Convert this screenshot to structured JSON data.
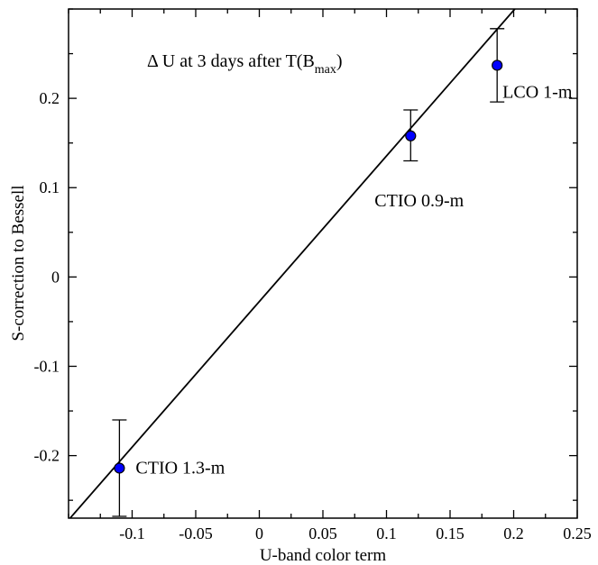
{
  "chart_data": {
    "type": "scatter",
    "xlabel": "U-band color term",
    "ylabel": "S-correction to Bessell",
    "xlim": [
      -0.15,
      0.25
    ],
    "ylim": [
      -0.27,
      0.3
    ],
    "grid": false,
    "annotation": {
      "prefix": "Δ U at 3 days after T(B",
      "sub": "max",
      "suffix": ")"
    },
    "x_ticks": [
      {
        "value": -0.1,
        "label": "-0.1"
      },
      {
        "value": -0.05,
        "label": "-0.05"
      },
      {
        "value": 0,
        "label": "0"
      },
      {
        "value": 0.05,
        "label": "0.05"
      },
      {
        "value": 0.1,
        "label": "0.1"
      },
      {
        "value": 0.15,
        "label": "0.15"
      },
      {
        "value": 0.2,
        "label": "0.2"
      },
      {
        "value": 0.25,
        "label": "0.25"
      }
    ],
    "y_ticks": [
      {
        "value": -0.2,
        "label": "-0.2"
      },
      {
        "value": -0.1,
        "label": "-0.1"
      },
      {
        "value": 0,
        "label": "0"
      },
      {
        "value": 0.1,
        "label": "0.1"
      },
      {
        "value": 0.2,
        "label": "0.2"
      }
    ],
    "points": [
      {
        "label": "CTIO 1.3-m",
        "x": -0.11,
        "y": -0.214,
        "y_err_low": -0.268,
        "y_err_high": -0.16
      },
      {
        "label": "CTIO 0.9-m",
        "x": 0.119,
        "y": 0.158,
        "y_err_low": 0.13,
        "y_err_high": 0.187
      },
      {
        "label": "LCO 1-m",
        "x": 0.187,
        "y": 0.237,
        "y_err_low": 0.196,
        "y_err_high": 0.278
      }
    ],
    "fit_line": {
      "slope": 1.63,
      "intercept": -0.0275
    },
    "colors": {
      "marker_fill": "#0000ff",
      "marker_edge": "#000000",
      "line": "#000000"
    }
  }
}
